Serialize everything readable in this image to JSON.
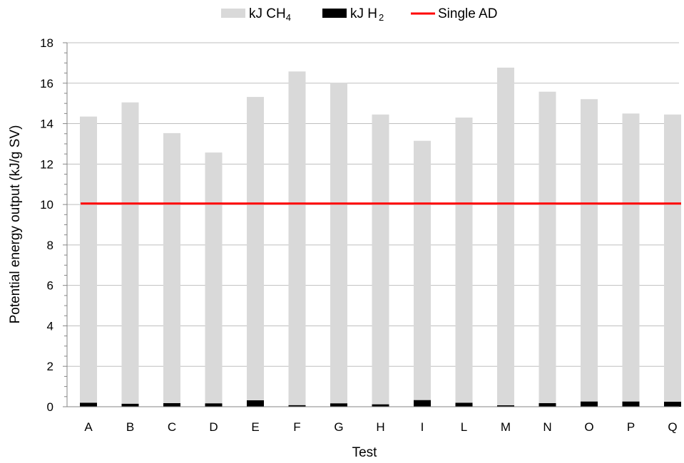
{
  "chart_data": {
    "type": "bar",
    "stacked": true,
    "categories": [
      "A",
      "B",
      "C",
      "D",
      "E",
      "F",
      "G",
      "H",
      "I",
      "L",
      "M",
      "N",
      "O",
      "P",
      "Q"
    ],
    "series": [
      {
        "name": "kJ H 2",
        "name_main": "kJ H",
        "name_sub": "2",
        "color": "#000000",
        "values": [
          0.2,
          0.15,
          0.18,
          0.17,
          0.32,
          0.08,
          0.17,
          0.12,
          0.33,
          0.2,
          0.07,
          0.18,
          0.26,
          0.26,
          0.25
        ]
      },
      {
        "name": "kJ CH4",
        "name_main": "kJ CH",
        "name_sub": "4",
        "color": "#d9d9d9",
        "values": [
          14.15,
          14.9,
          13.35,
          12.4,
          15.0,
          16.5,
          15.85,
          14.33,
          12.82,
          14.1,
          16.7,
          15.4,
          14.95,
          14.24,
          14.2
        ]
      }
    ],
    "reference_line": {
      "name": "Single AD",
      "value": 10.05,
      "color": "#ff0000"
    },
    "xlabel": "Test",
    "ylabel": "Potential energy output (kJ/g SV)",
    "ylim": [
      0,
      18
    ],
    "yticks": [
      0,
      2,
      4,
      6,
      8,
      10,
      12,
      14,
      16,
      18
    ],
    "grid": true,
    "legend_position": "top"
  }
}
